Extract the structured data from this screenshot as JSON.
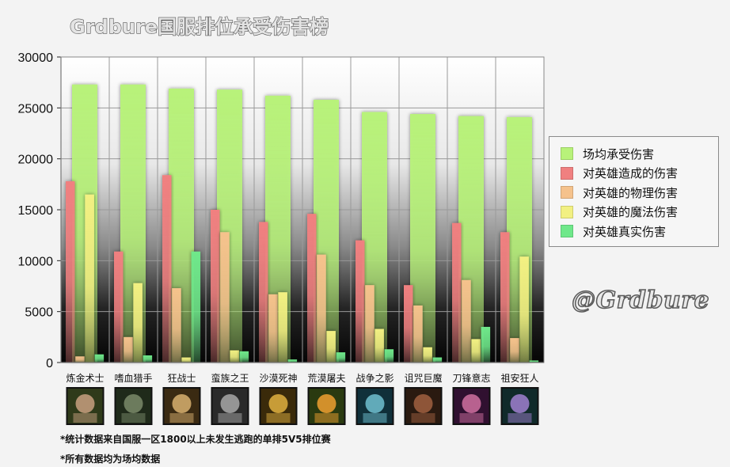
{
  "chart_data": {
    "type": "bar",
    "title": "Grdbure国服排位承受伤害榜",
    "categories": [
      "炼金术士",
      "嗜血猎手",
      "狂战士",
      "蛮族之王",
      "沙漠死神",
      "荒漠屠夫",
      "战争之影",
      "诅咒巨魔",
      "刀锋意志",
      "祖安狂人"
    ],
    "ylim": [
      0,
      30000
    ],
    "yticks": [
      0,
      5000,
      10000,
      15000,
      20000,
      25000,
      30000
    ],
    "grid": true,
    "legend_position": "right",
    "series": [
      {
        "name": "场均承受伤害",
        "color": "#b8f27a",
        "values": [
          27300,
          27300,
          26900,
          26800,
          26200,
          25800,
          24600,
          24400,
          24200,
          24100
        ]
      },
      {
        "name": "对英雄造成的伤害",
        "color": "#f08080",
        "values": [
          17800,
          10900,
          18400,
          15000,
          13800,
          14600,
          12000,
          7600,
          13700,
          12800
        ]
      },
      {
        "name": "对英雄的物理伤害",
        "color": "#f5c28c",
        "values": [
          600,
          2500,
          7300,
          12800,
          6700,
          10600,
          7600,
          5600,
          8100,
          2400
        ]
      },
      {
        "name": "对英雄的魔法伤害",
        "color": "#f2f082",
        "values": [
          16500,
          7800,
          500,
          1200,
          6900,
          3100,
          3300,
          1500,
          2300,
          10400
        ]
      },
      {
        "name": "对英雄真实伤害",
        "color": "#6fe88a",
        "values": [
          800,
          700,
          10900,
          1100,
          300,
          1000,
          1300,
          500,
          3500,
          200
        ]
      }
    ]
  },
  "watermark": "@Grdbure",
  "footnotes": [
    "*统计数据来自国服一区1800以上未发生逃跑的单排5V5排位赛",
    "*所有数据均为场均数据"
  ],
  "champion_icons": [
    "alchemist-portrait",
    "bloodseeker-portrait",
    "troll-warlord-portrait",
    "brewmaster-portrait",
    "sand-king-portrait",
    "wraith-portrait",
    "spectre-portrait",
    "witch-doctor-portrait",
    "juggernaut-portrait",
    "warlock-portrait"
  ]
}
